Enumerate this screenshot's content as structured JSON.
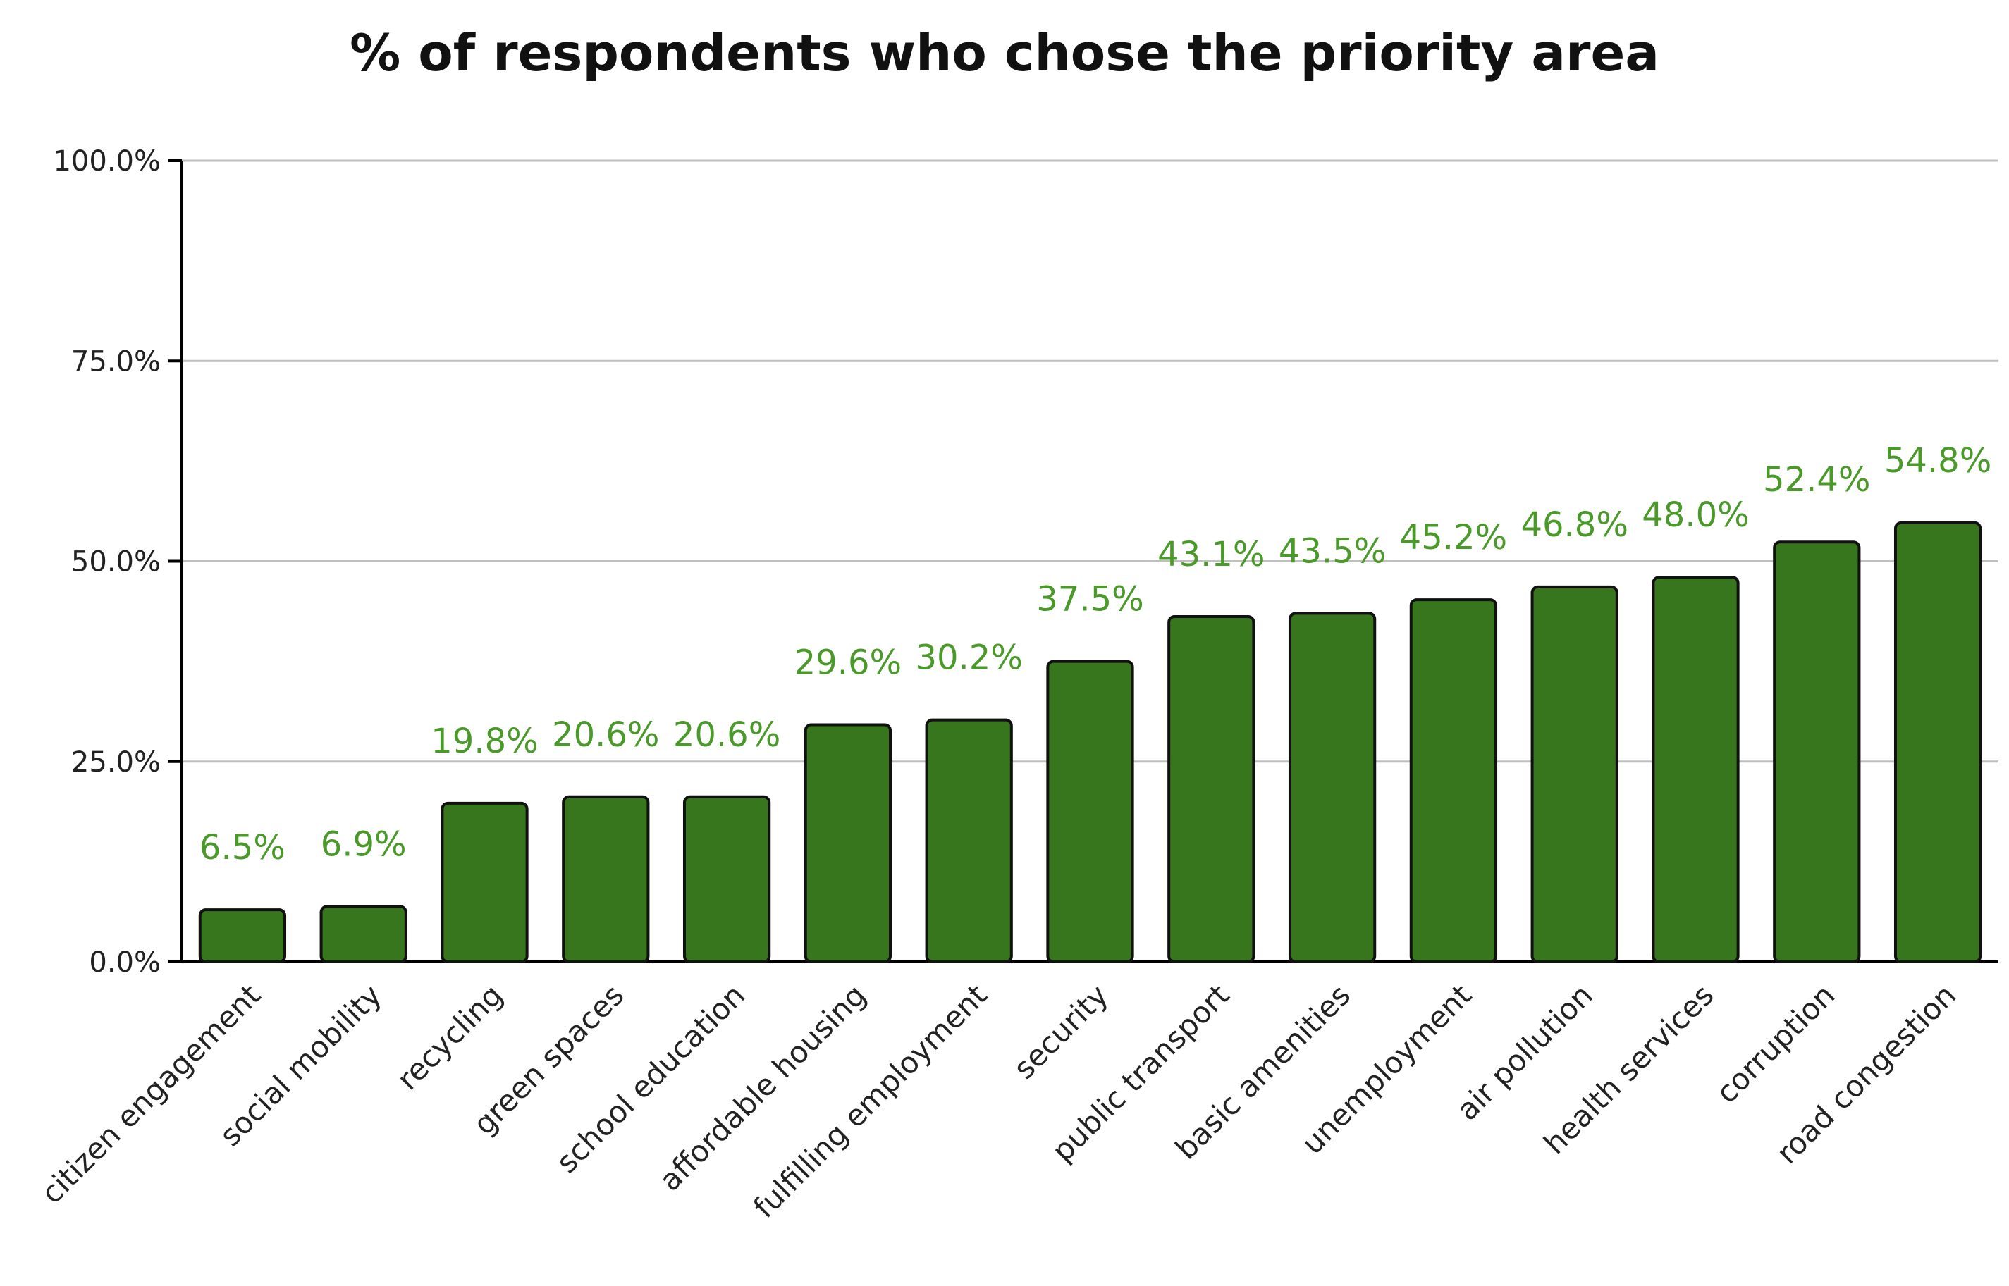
{
  "chart_data": {
    "type": "bar",
    "title": "% of respondents who chose the priority area",
    "xlabel": "",
    "ylabel": "",
    "ylim": [
      0,
      100
    ],
    "y_ticks": [
      0,
      25,
      50,
      75,
      100
    ],
    "y_tick_labels": [
      "0.0%",
      "25.0%",
      "50.0%",
      "75.0%",
      "100.0%"
    ],
    "grid": true,
    "legend": "none",
    "categories": [
      "citizen engagement",
      "social mobility",
      "recycling",
      "green spaces",
      "school education",
      "affordable housing",
      "fulfilling employment",
      "security",
      "public transport",
      "basic amenities",
      "unemployment",
      "air pollution",
      "health services",
      "corruption",
      "road congestion"
    ],
    "values": [
      6.5,
      6.9,
      19.8,
      20.6,
      20.6,
      29.6,
      30.2,
      37.5,
      43.1,
      43.5,
      45.2,
      46.8,
      48.0,
      52.4,
      54.8
    ],
    "data_labels": [
      "6.5%",
      "6.9%",
      "19.8%",
      "20.6%",
      "20.6%",
      "29.6%",
      "30.2%",
      "37.5%",
      "43.1%",
      "43.5%",
      "45.2%",
      "46.8%",
      "48.0%",
      "52.4%",
      "54.8%"
    ],
    "colors": {
      "bar_fill": "#38761d",
      "bar_edge": "#111111",
      "data_label": "#4a9a2a"
    }
  }
}
